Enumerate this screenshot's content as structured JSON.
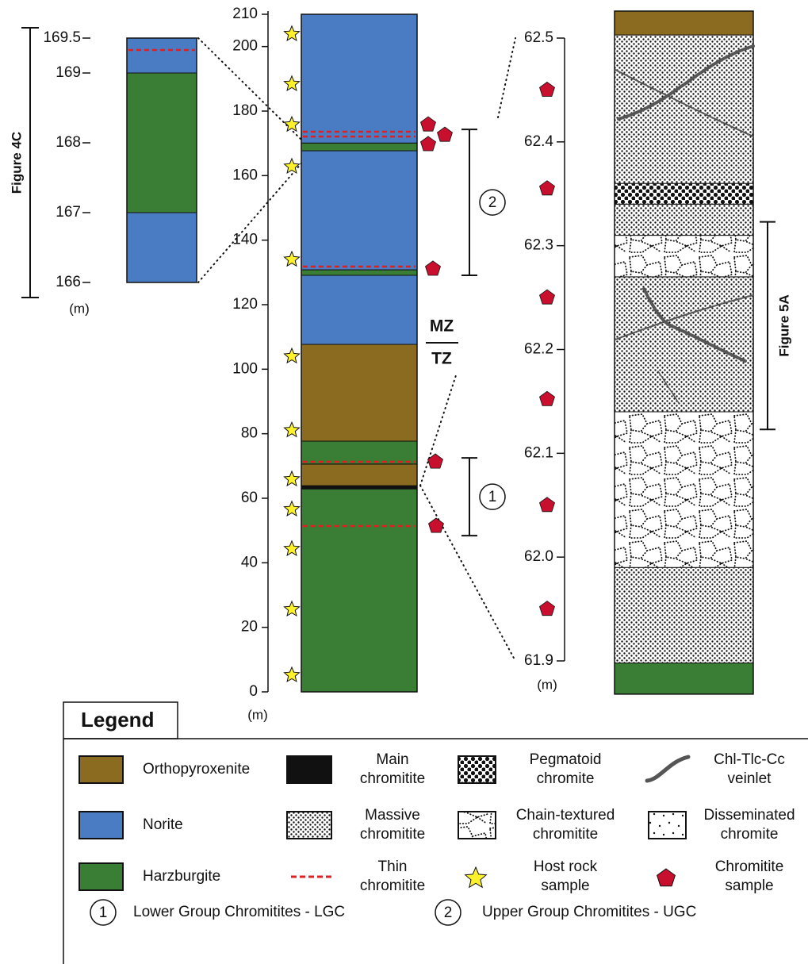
{
  "inset": {
    "figure_label": "Figure 4C",
    "unit": "(m)",
    "ylim": [
      166,
      169.5
    ],
    "yticks": [
      169.5,
      169,
      168,
      167,
      166
    ],
    "layers": [
      {
        "rock": "Norite",
        "from": 166,
        "to": 167
      },
      {
        "rock": "Harzburgite",
        "from": 167,
        "to": 169
      },
      {
        "rock": "Norite",
        "from": 169,
        "to": 169.5
      }
    ],
    "thin_chromitite": [
      169.33
    ]
  },
  "main": {
    "unit": "(m)",
    "ylim": [
      0,
      210
    ],
    "yticks": [
      210,
      200,
      180,
      160,
      140,
      120,
      100,
      80,
      60,
      40,
      20,
      0
    ],
    "layers": [
      {
        "rock": "Harzburgite",
        "from": 0,
        "to": 62.9
      },
      {
        "rock": "Main chromitite",
        "from": 62.9,
        "to": 63.9
      },
      {
        "rock": "Orthopyroxenite",
        "from": 63.9,
        "to": 70.6
      },
      {
        "rock": "Harzburgite",
        "from": 70.6,
        "to": 77.7
      },
      {
        "rock": "Orthopyroxenite",
        "from": 77.7,
        "to": 107.7
      },
      {
        "rock": "Norite",
        "from": 107.7,
        "to": 129.1
      },
      {
        "rock": "Harzburgite",
        "from": 129.1,
        "to": 130.8
      },
      {
        "rock": "Norite",
        "from": 130.8,
        "to": 167.7
      },
      {
        "rock": "Harzburgite",
        "from": 167.7,
        "to": 170.1
      },
      {
        "rock": "Norite",
        "from": 170.1,
        "to": 210
      }
    ],
    "thin_chromitite": [
      51.4,
      71.3,
      131.8,
      172.1,
      173.6
    ],
    "host_rock_samples": [
      203.9,
      188.4,
      175.8,
      162.8,
      134,
      104,
      81.1,
      65.9,
      56.6,
      44.3,
      25.6,
      5.2
    ],
    "chromitite_samples": [
      175.8,
      172.6,
      169.7,
      131.1,
      71.3,
      51.4
    ],
    "groups": [
      {
        "label": "1",
        "from": 48.4,
        "to": 72.5
      },
      {
        "label": "2",
        "from": 129.1,
        "to": 174.3
      }
    ],
    "zone_upper": "MZ",
    "zone_lower": "TZ"
  },
  "detail": {
    "unit": "(m)",
    "ylim": [
      61.9,
      62.5
    ],
    "yticks": [
      62.5,
      62.4,
      62.3,
      62.2,
      62.1,
      {
        "value": 62.0,
        "label": "62.0"
      },
      61.9
    ],
    "layers": [
      {
        "rock": "Harzburgite",
        "from": 61.868,
        "to": 61.898
      },
      {
        "rock": "Massive chromitite",
        "from": 61.898,
        "to": 61.99
      },
      {
        "rock": "Chain-textured chromitite",
        "from": 61.99,
        "to": 62.14
      },
      {
        "rock": "Massive chromitite",
        "from": 62.14,
        "to": 62.27
      },
      {
        "rock": "Chain-textured chromitite",
        "from": 62.27,
        "to": 62.31
      },
      {
        "rock": "Massive chromitite",
        "from": 62.31,
        "to": 62.34
      },
      {
        "rock": "Pegmatoid chromite",
        "from": 62.34,
        "to": 62.36
      },
      {
        "rock": "Massive chromitite",
        "from": 62.36,
        "to": 62.503
      },
      {
        "rock": "Orthopyroxenite",
        "from": 62.503,
        "to": 62.526
      }
    ],
    "chromitite_samples": [
      62.45,
      62.355,
      62.25,
      62.152,
      62.05,
      61.95
    ],
    "figure_label": "Figure 5A",
    "figure_range": [
      62.123,
      62.323
    ]
  },
  "legend": {
    "title": "Legend",
    "items": [
      {
        "label": "Orthopyroxenite",
        "color": "#8b6b1f"
      },
      {
        "label": "Main chromitite",
        "color": "#111111"
      },
      {
        "label": "Pegmatoid chromite"
      },
      {
        "label": "Chl-Tlc-Cc veinlet",
        "color": "#555555"
      },
      {
        "label": "Norite",
        "color": "#4a7cc4"
      },
      {
        "label": "Massive chromitite"
      },
      {
        "label": "Chain-textured chromitite"
      },
      {
        "label": "Disseminated chromite"
      },
      {
        "label": "Harzburgite",
        "color": "#3a7d34"
      },
      {
        "label": "Thin chromitite",
        "color": "#e02020"
      },
      {
        "label": "Host rock sample",
        "color": "#fff22a"
      },
      {
        "label": "Chromitite sample",
        "color": "#c8102e"
      }
    ],
    "groups": [
      {
        "number": "1",
        "label": "Lower Group Chromitites - LGC"
      },
      {
        "number": "2",
        "label": "Upper Group Chromitites - UGC"
      }
    ]
  }
}
